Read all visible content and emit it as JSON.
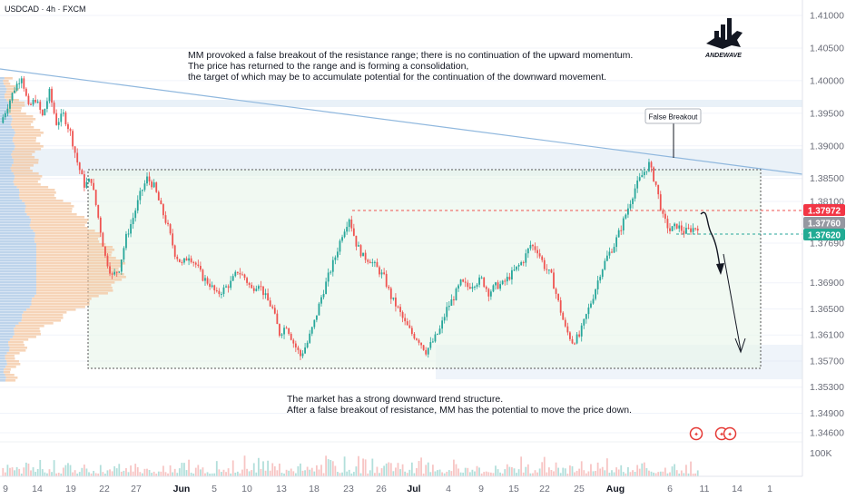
{
  "header": {
    "symbol_line": "USDCAD · 4h · FXCM"
  },
  "logo": {
    "text": "ANDEWAVE"
  },
  "annotations": {
    "top_lines": [
      "MM provoked a false breakout of the resistance range; there is no continuation of the upward momentum.",
      "The price has returned to the range and is forming a consolidation,",
      "the target of which may be to accumulate potential for the continuation of the downward movement."
    ],
    "bottom_lines": [
      "The market has a strong downward trend structure.",
      "After a false breakout of resistance, MM has the potential to move the price down."
    ],
    "false_breakout_label": "False Breakout"
  },
  "colors": {
    "up": "#26a69a",
    "down": "#ef5350",
    "range_fill": "#e8f5e9",
    "zone_fill": "#dbe7f3",
    "trendline": "#90b8de",
    "badge_red": "#f23645",
    "badge_gray": "#9598a1",
    "badge_teal": "#22ab94",
    "volume_profile": "#f3c6a0",
    "volume_profile_blue": "#b3cde8"
  },
  "chart_data": {
    "type": "candlestick",
    "symbol": "USDCAD",
    "timeframe": "4h",
    "source": "FXCM",
    "ylim": [
      1.344,
      1.413
    ],
    "y_ticks": [
      "1.41000",
      "1.40500",
      "1.40000",
      "1.39500",
      "1.39000",
      "1.38500",
      "1.38100",
      "1.37690",
      "1.36900",
      "1.36500",
      "1.36100",
      "1.35700",
      "1.35300",
      "1.34900",
      "1.34600"
    ],
    "x_ticks": [
      "9",
      "14",
      "19",
      "22",
      "27",
      "Jun",
      "5",
      "10",
      "13",
      "18",
      "23",
      "26",
      "Jul",
      "4",
      "9",
      "15",
      "22",
      "25",
      "Aug",
      "6",
      "11",
      "14",
      "1"
    ],
    "price_badges": [
      {
        "value": "1.37972",
        "color": "#f23645"
      },
      {
        "value": "1.37760",
        "color": "#9598a1"
      },
      {
        "value": "1.37620",
        "color": "#22ab94"
      }
    ],
    "volume_label": "100K",
    "range_box": {
      "top": 1.3862,
      "bottom": 1.3555
    },
    "resistance_level": 1.3797,
    "support_level": 1.3762,
    "price_path": [
      [
        0,
        1.3935
      ],
      [
        1,
        1.3962
      ],
      [
        2,
        1.3988
      ],
      [
        3,
        1.4008
      ],
      [
        4,
        1.3958
      ],
      [
        5,
        1.3972
      ],
      [
        6,
        1.3945
      ],
      [
        7,
        1.3982
      ],
      [
        8,
        1.3935
      ],
      [
        9,
        1.3948
      ],
      [
        10,
        1.392
      ],
      [
        11,
        1.3875
      ],
      [
        12,
        1.384
      ],
      [
        13,
        1.3848
      ],
      [
        14,
        1.379
      ],
      [
        15,
        1.373
      ],
      [
        16,
        1.37
      ],
      [
        17,
        1.3712
      ],
      [
        18,
        1.376
      ],
      [
        19,
        1.379
      ],
      [
        20,
        1.3825
      ],
      [
        21,
        1.385
      ],
      [
        22,
        1.3838
      ],
      [
        23,
        1.3805
      ],
      [
        24,
        1.3775
      ],
      [
        25,
        1.3735
      ],
      [
        26,
        1.3718
      ],
      [
        27,
        1.3732
      ],
      [
        28,
        1.3718
      ],
      [
        29,
        1.3698
      ],
      [
        30,
        1.3688
      ],
      [
        31,
        1.3672
      ],
      [
        32,
        1.368
      ],
      [
        33,
        1.369
      ],
      [
        34,
        1.3708
      ],
      [
        35,
        1.3698
      ],
      [
        36,
        1.368
      ],
      [
        37,
        1.369
      ],
      [
        38,
        1.3668
      ],
      [
        39,
        1.365
      ],
      [
        40,
        1.3612
      ],
      [
        41,
        1.3625
      ],
      [
        42,
        1.3598
      ],
      [
        43,
        1.3578
      ],
      [
        44,
        1.3598
      ],
      [
        45,
        1.363
      ],
      [
        46,
        1.3668
      ],
      [
        47,
        1.37
      ],
      [
        48,
        1.373
      ],
      [
        49,
        1.3765
      ],
      [
        50,
        1.379
      ],
      [
        51,
        1.375
      ],
      [
        52,
        1.373
      ],
      [
        53,
        1.3725
      ],
      [
        54,
        1.3712
      ],
      [
        55,
        1.3698
      ],
      [
        56,
        1.3668
      ],
      [
        57,
        1.365
      ],
      [
        58,
        1.3628
      ],
      [
        59,
        1.3612
      ],
      [
        60,
        1.3602
      ],
      [
        61,
        1.3585
      ],
      [
        62,
        1.36
      ],
      [
        63,
        1.3618
      ],
      [
        64,
        1.365
      ],
      [
        65,
        1.3668
      ],
      [
        66,
        1.369
      ],
      [
        67,
        1.3684
      ],
      [
        68,
        1.369
      ],
      [
        69,
        1.3695
      ],
      [
        70,
        1.3675
      ],
      [
        71,
        1.3685
      ],
      [
        72,
        1.3688
      ],
      [
        73,
        1.37
      ],
      [
        74,
        1.3712
      ],
      [
        75,
        1.3725
      ],
      [
        76,
        1.3748
      ],
      [
        77,
        1.374
      ],
      [
        78,
        1.3715
      ],
      [
        79,
        1.37
      ],
      [
        80,
        1.366
      ],
      [
        81,
        1.362
      ],
      [
        82,
        1.36
      ],
      [
        83,
        1.3608
      ],
      [
        84,
        1.364
      ],
      [
        85,
        1.367
      ],
      [
        86,
        1.3705
      ],
      [
        87,
        1.373
      ],
      [
        88,
        1.3748
      ],
      [
        89,
        1.3775
      ],
      [
        90,
        1.3805
      ],
      [
        91,
        1.3835
      ],
      [
        92,
        1.3855
      ],
      [
        93,
        1.3872
      ],
      [
        94,
        1.384
      ],
      [
        95,
        1.379
      ],
      [
        96,
        1.377
      ],
      [
        97,
        1.3778
      ],
      [
        98,
        1.3768
      ],
      [
        99,
        1.3772
      ],
      [
        100,
        1.3776
      ]
    ]
  }
}
